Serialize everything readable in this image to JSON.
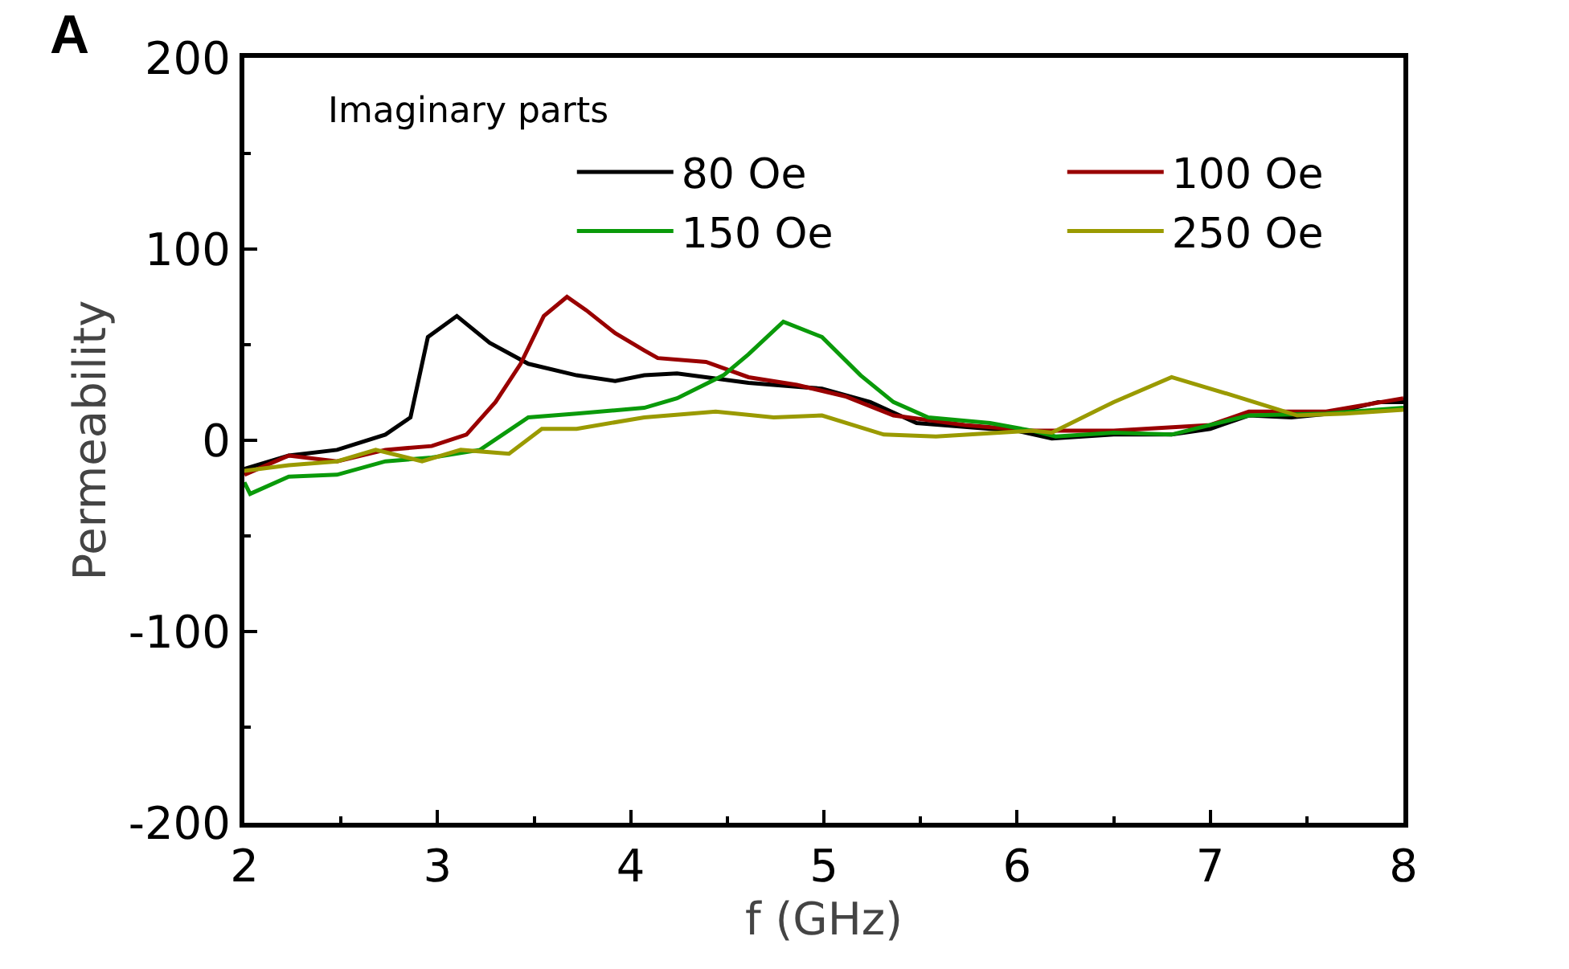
{
  "chart_data": {
    "type": "line",
    "xlabel": "f (GHz)",
    "ylabel": "Permeability",
    "annotations": [
      "A",
      "Imaginary parts"
    ],
    "xlim": [
      2,
      8
    ],
    "xticks": [
      2,
      3,
      4,
      5,
      6,
      7,
      8
    ],
    "ylim": [
      -200,
      200
    ],
    "yticks": [
      -200,
      -100,
      0,
      100,
      200
    ],
    "grid": false,
    "legend": "top",
    "marker": "none",
    "line_style": "solid",
    "series": [
      {
        "name": "80 Oe",
        "color": "#000000",
        "x": [
          2,
          2.23,
          2.48,
          2.73,
          2.86,
          2.95,
          3.1,
          3.27,
          3.47,
          3.72,
          3.92,
          4.07,
          4.24,
          4.61,
          4.99,
          5.24,
          5.48,
          5.86,
          6.0,
          6.18,
          6.5,
          6.8,
          7.0,
          7.2,
          7.42,
          7.62,
          7.87,
          8
        ],
        "values": [
          -15,
          -8,
          -5,
          3,
          12,
          54,
          65,
          51,
          40,
          34,
          31,
          34,
          35,
          30,
          27,
          20,
          9,
          6,
          5,
          1,
          3,
          3,
          6,
          13,
          12,
          14,
          20,
          20
        ]
      },
      {
        "name": "100 Oe",
        "color": "#990000",
        "x": [
          2,
          2.23,
          2.48,
          2.73,
          2.97,
          3.15,
          3.3,
          3.43,
          3.55,
          3.67,
          3.77,
          3.92,
          4.07,
          4.14,
          4.39,
          4.61,
          4.86,
          5.11,
          5.36,
          5.73,
          6.08,
          6.5,
          7.0,
          7.2,
          7.6,
          8
        ],
        "values": [
          -18,
          -8,
          -11,
          -5,
          -3,
          3,
          20,
          40,
          65,
          75,
          68,
          56,
          47,
          43,
          41,
          33,
          29,
          23,
          13,
          8,
          5,
          5,
          8,
          15,
          15,
          22
        ]
      },
      {
        "name": "150 Oe",
        "color": "#0a9a0a",
        "x": [
          2,
          2.03,
          2.23,
          2.48,
          2.73,
          2.97,
          3.22,
          3.47,
          3.72,
          4.07,
          4.24,
          4.48,
          4.61,
          4.79,
          4.99,
          5.19,
          5.36,
          5.54,
          5.86,
          6.08,
          6.2,
          6.5,
          6.8,
          7.2,
          7.6,
          8
        ],
        "values": [
          -22,
          -28,
          -19,
          -18,
          -11,
          -9,
          -5,
          12,
          14,
          17,
          22,
          34,
          45,
          62,
          54,
          34,
          20,
          12,
          9,
          5,
          2,
          4,
          3,
          13,
          14,
          17
        ]
      },
      {
        "name": "250 Oe",
        "color": "#9a9a00",
        "x": [
          2,
          2.23,
          2.48,
          2.68,
          2.92,
          3.12,
          3.37,
          3.54,
          3.72,
          4.07,
          4.44,
          4.74,
          4.99,
          5.31,
          5.58,
          6.08,
          6.18,
          6.5,
          6.8,
          7.1,
          7.45,
          7.7,
          8
        ],
        "values": [
          -16,
          -13,
          -11,
          -5,
          -11,
          -5,
          -7,
          6,
          6,
          12,
          15,
          12,
          13,
          3,
          2,
          5,
          4,
          20,
          33,
          24,
          13,
          14,
          16
        ]
      }
    ]
  }
}
